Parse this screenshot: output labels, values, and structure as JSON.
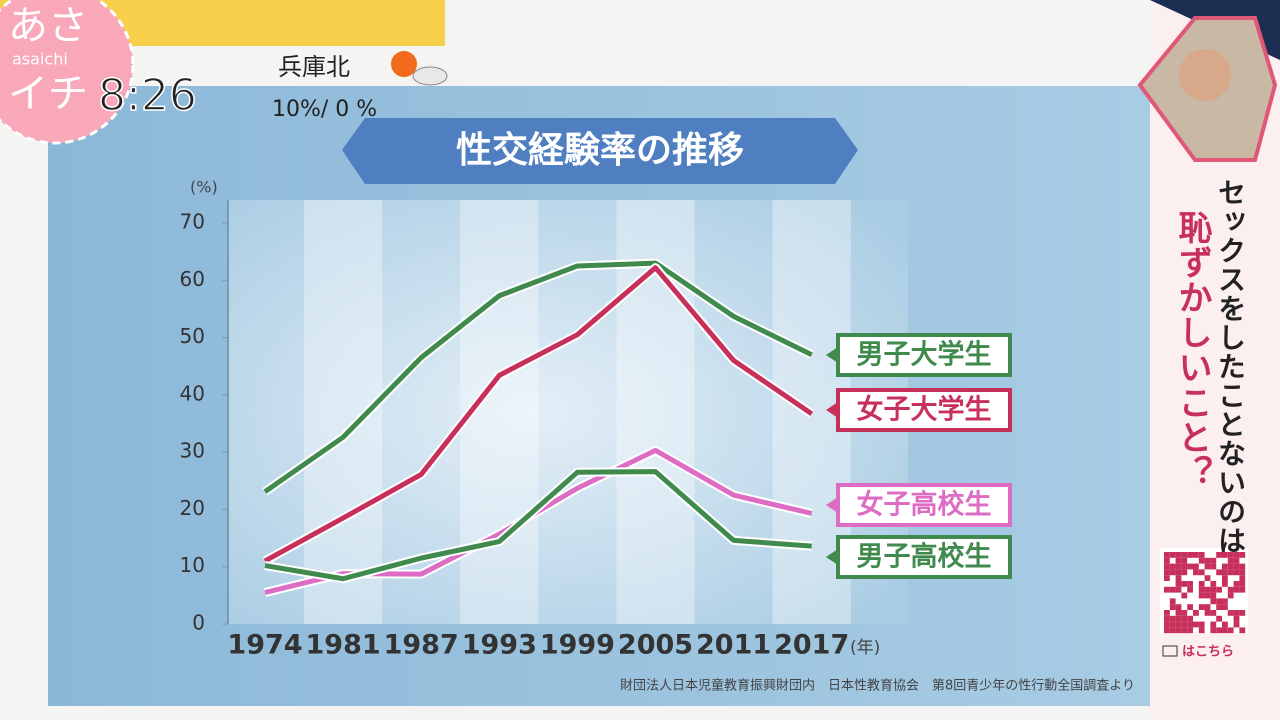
{
  "broadcast": {
    "logo_top": "あさ",
    "logo_bottom": "イチ",
    "logo_roman": "asaichi",
    "time": "8:26",
    "region": "兵庫北",
    "rain": "10%/ 0 %"
  },
  "side_panel": {
    "question_line1": "セックスをしたことないのは",
    "question_line2": "恥ずかしいこと？",
    "link": "はこちら"
  },
  "chart_data": {
    "type": "line",
    "title": "性交経験率の推移",
    "y_unit": "(%)",
    "x_unit": "(年)",
    "categories": [
      "1974",
      "1981",
      "1987",
      "1993",
      "1999",
      "2005",
      "2011",
      "2017"
    ],
    "series": [
      {
        "name": "男子大学生",
        "color": "#3f8a4c",
        "values": [
          23.1,
          32.6,
          46.5,
          57.3,
          62.5,
          63.0,
          53.7,
          47.0
        ]
      },
      {
        "name": "女子大学生",
        "color": "#c8305c",
        "values": [
          11.0,
          18.5,
          26.1,
          43.4,
          50.5,
          62.2,
          46.0,
          36.7
        ]
      },
      {
        "name": "女子高校生",
        "color": "#dc6cc4",
        "values": [
          5.5,
          8.8,
          8.7,
          15.7,
          23.7,
          30.3,
          22.5,
          19.3
        ]
      },
      {
        "name": "男子高校生",
        "color": "#3f8a4c",
        "values": [
          10.2,
          7.9,
          11.5,
          14.4,
          26.5,
          26.6,
          14.6,
          13.6
        ]
      }
    ],
    "ylim": [
      0,
      70
    ],
    "yticks": [
      0,
      10,
      20,
      30,
      40,
      50,
      60,
      70
    ],
    "grid": false,
    "source": "財団法人日本児童教育振興財団内　日本性教育協会　第8回青少年の性行動全国調査より"
  }
}
